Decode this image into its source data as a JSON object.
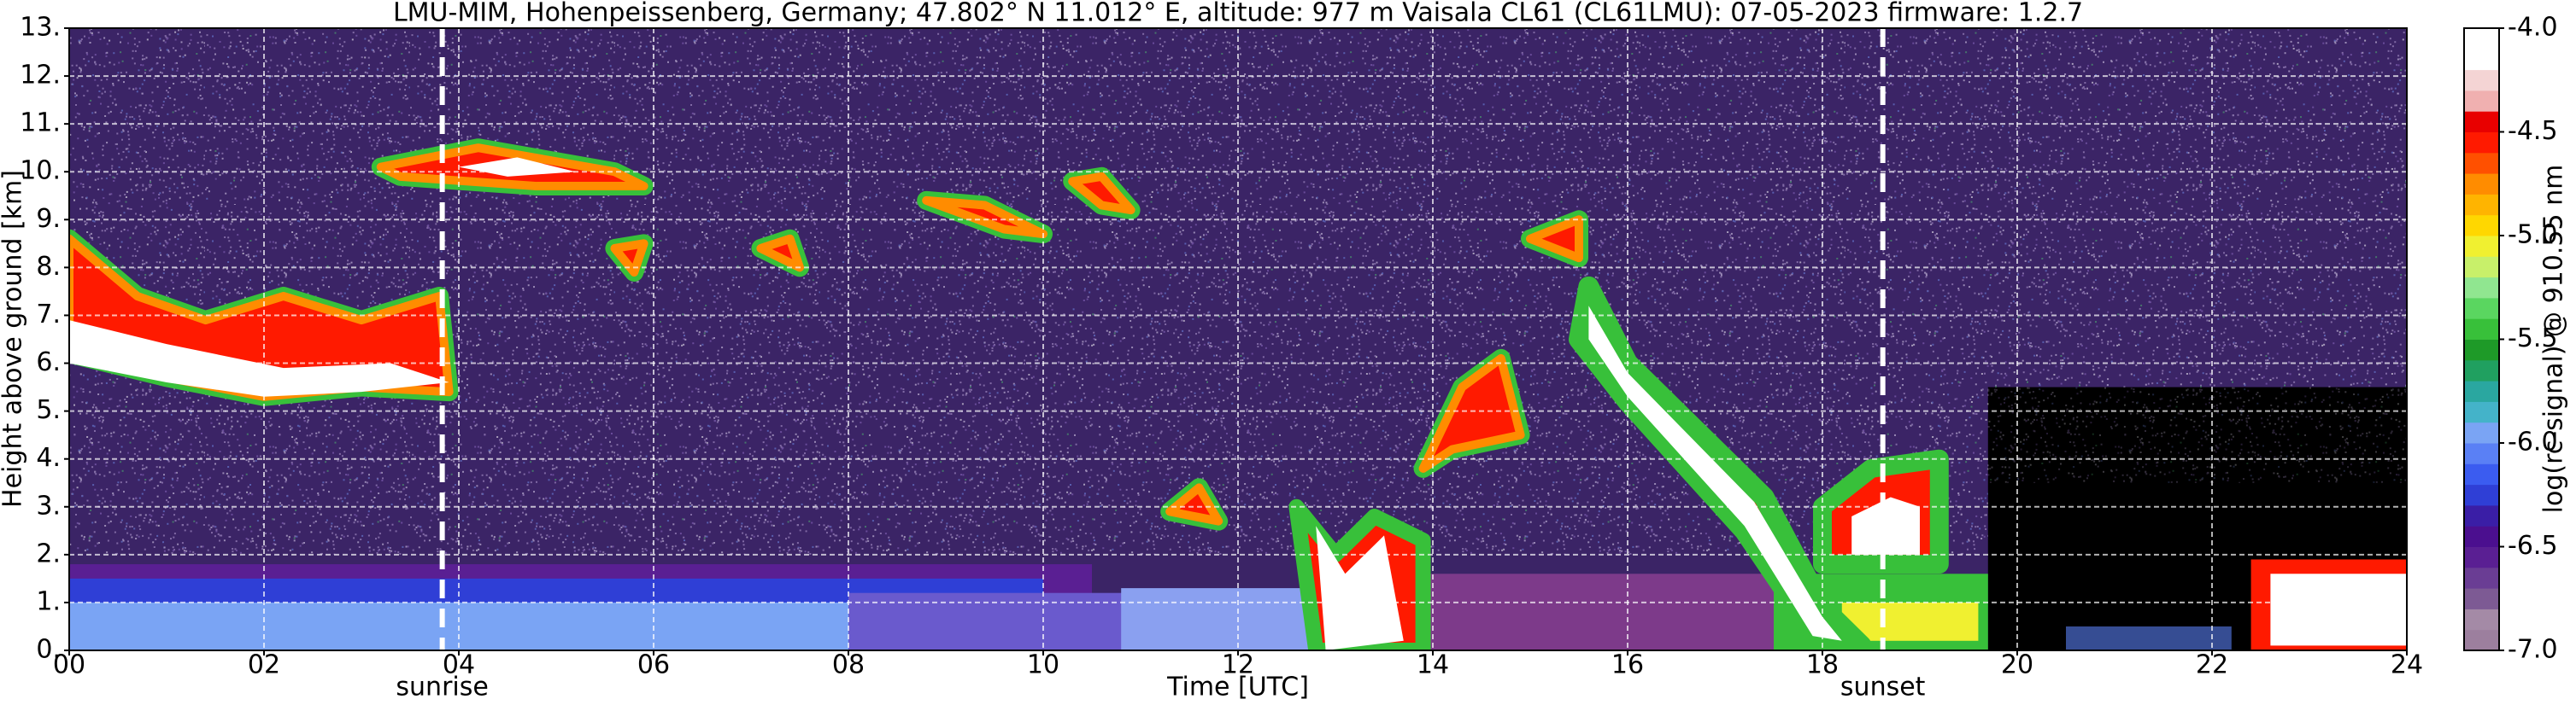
{
  "chart_data": {
    "type": "heatmap",
    "title": "LMU-MIM, Hohenpeissenberg, Germany; 47.802° N 11.012° E, altitude: 977 m    Vaisala CL61 (CL61LMU): 07-05-2023    firmware: 1.2.7",
    "x_label": "Time [UTC]",
    "y_label": "Height above ground [km]",
    "xlim": [
      0,
      24
    ],
    "xticks": [
      {
        "value": 0,
        "label": "00"
      },
      {
        "value": 2,
        "label": "02"
      },
      {
        "value": 4,
        "label": "04"
      },
      {
        "value": 6,
        "label": "06"
      },
      {
        "value": 8,
        "label": "08"
      },
      10,
      12,
      14,
      16,
      18,
      20,
      22,
      24
    ],
    "ylim": [
      0,
      13
    ],
    "yticks": [
      {
        "value": 0,
        "label": "0."
      },
      {
        "value": 1,
        "label": "1."
      },
      {
        "value": 2,
        "label": "2."
      },
      {
        "value": 3,
        "label": "3."
      },
      {
        "value": 4,
        "label": "4."
      },
      {
        "value": 5,
        "label": "5."
      },
      {
        "value": 6,
        "label": "6."
      },
      {
        "value": 7,
        "label": "7."
      },
      {
        "value": 8,
        "label": "8."
      },
      {
        "value": 9,
        "label": "9."
      },
      {
        "value": 10,
        "label": "10."
      },
      {
        "value": 11,
        "label": "11."
      },
      {
        "value": 12,
        "label": "12."
      },
      {
        "value": 13,
        "label": "13."
      }
    ],
    "grid": true,
    "annotations": [
      {
        "text": "sunrise",
        "x": 3.83
      },
      {
        "text": "sunset",
        "x": 18.62
      }
    ],
    "colorbar": {
      "label": "log(rc-signal) @ 910.55 nm",
      "lim": [
        -7,
        -4
      ],
      "ticks": [
        {
          "value": -4,
          "label": "-4.0"
        },
        -4.5,
        {
          "value": -5,
          "label": "-5.0"
        },
        -5.5,
        {
          "value": -6,
          "label": "-6.0"
        },
        -6.5,
        {
          "value": -7,
          "label": "-7.0"
        }
      ],
      "colors": [
        "#9c7f9e",
        "#a48aa6",
        "#7d5a94",
        "#6a3d94",
        "#5a1f93",
        "#4b0f8f",
        "#3a1ea6",
        "#2f3fd6",
        "#3b5cf0",
        "#5a80f5",
        "#7aa4f4",
        "#44b3c9",
        "#2aa7a0",
        "#20a060",
        "#1e9a28",
        "#38c03a",
        "#5ad660",
        "#90e690",
        "#c8f06a",
        "#f0f030",
        "#ffd700",
        "#ffb400",
        "#ff8c00",
        "#ff5000",
        "#ff1a00",
        "#e80000",
        "#f0b0b0",
        "#f4d4d4",
        "#ffffff",
        "#ffffff"
      ]
    }
  }
}
